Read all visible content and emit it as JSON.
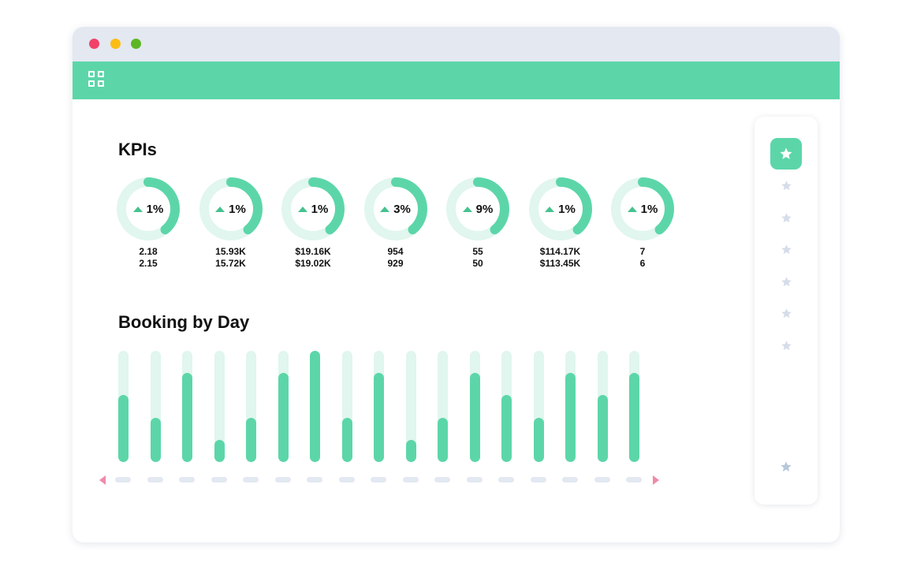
{
  "window": {
    "traffic_lights": [
      "close",
      "minimize",
      "maximize"
    ],
    "colors": {
      "titlebar": "#e3e8f1",
      "appbar": "#5cd6a9",
      "close": "#f24268",
      "minimize": "#fbbd14",
      "maximize": "#5cb624"
    }
  },
  "appbar": {
    "menu_icon": "grid-icon"
  },
  "kpis": {
    "title": "KPIs",
    "items": [
      {
        "change": "1%",
        "current": "2.18",
        "previous": "2.15"
      },
      {
        "change": "1%",
        "current": "15.93K",
        "previous": "15.72K"
      },
      {
        "change": "1%",
        "current": "$19.16K",
        "previous": "$19.02K"
      },
      {
        "change": "3%",
        "current": "954",
        "previous": "929"
      },
      {
        "change": "9%",
        "current": "55",
        "previous": "50"
      },
      {
        "change": "1%",
        "current": "$114.17K",
        "previous": "$113.45K"
      },
      {
        "change": "1%",
        "current": "7",
        "previous": "6"
      }
    ]
  },
  "booking": {
    "title": "Booking by Day",
    "bar_fill_levels": [
      0.6,
      0.4,
      0.8,
      0.2,
      0.4,
      0.8,
      1.0,
      0.4,
      0.8,
      0.2,
      0.4,
      0.8,
      0.6,
      0.4,
      0.8,
      0.6,
      0.8
    ]
  },
  "sidebar": {
    "items": [
      "star-icon",
      "star-icon",
      "star-icon",
      "star-icon",
      "star-icon",
      "star-icon",
      "star-icon"
    ],
    "active_index": 0,
    "bottom_item": "star-icon"
  },
  "colors": {
    "accent": "#5cd6a9",
    "accent_light": "#e0f6ee",
    "up_arrow": "#46c28f",
    "star_inactive": "#d5dde9",
    "star_bottom": "#b8c8db",
    "scroll_arrow": "#f08aa9"
  }
}
